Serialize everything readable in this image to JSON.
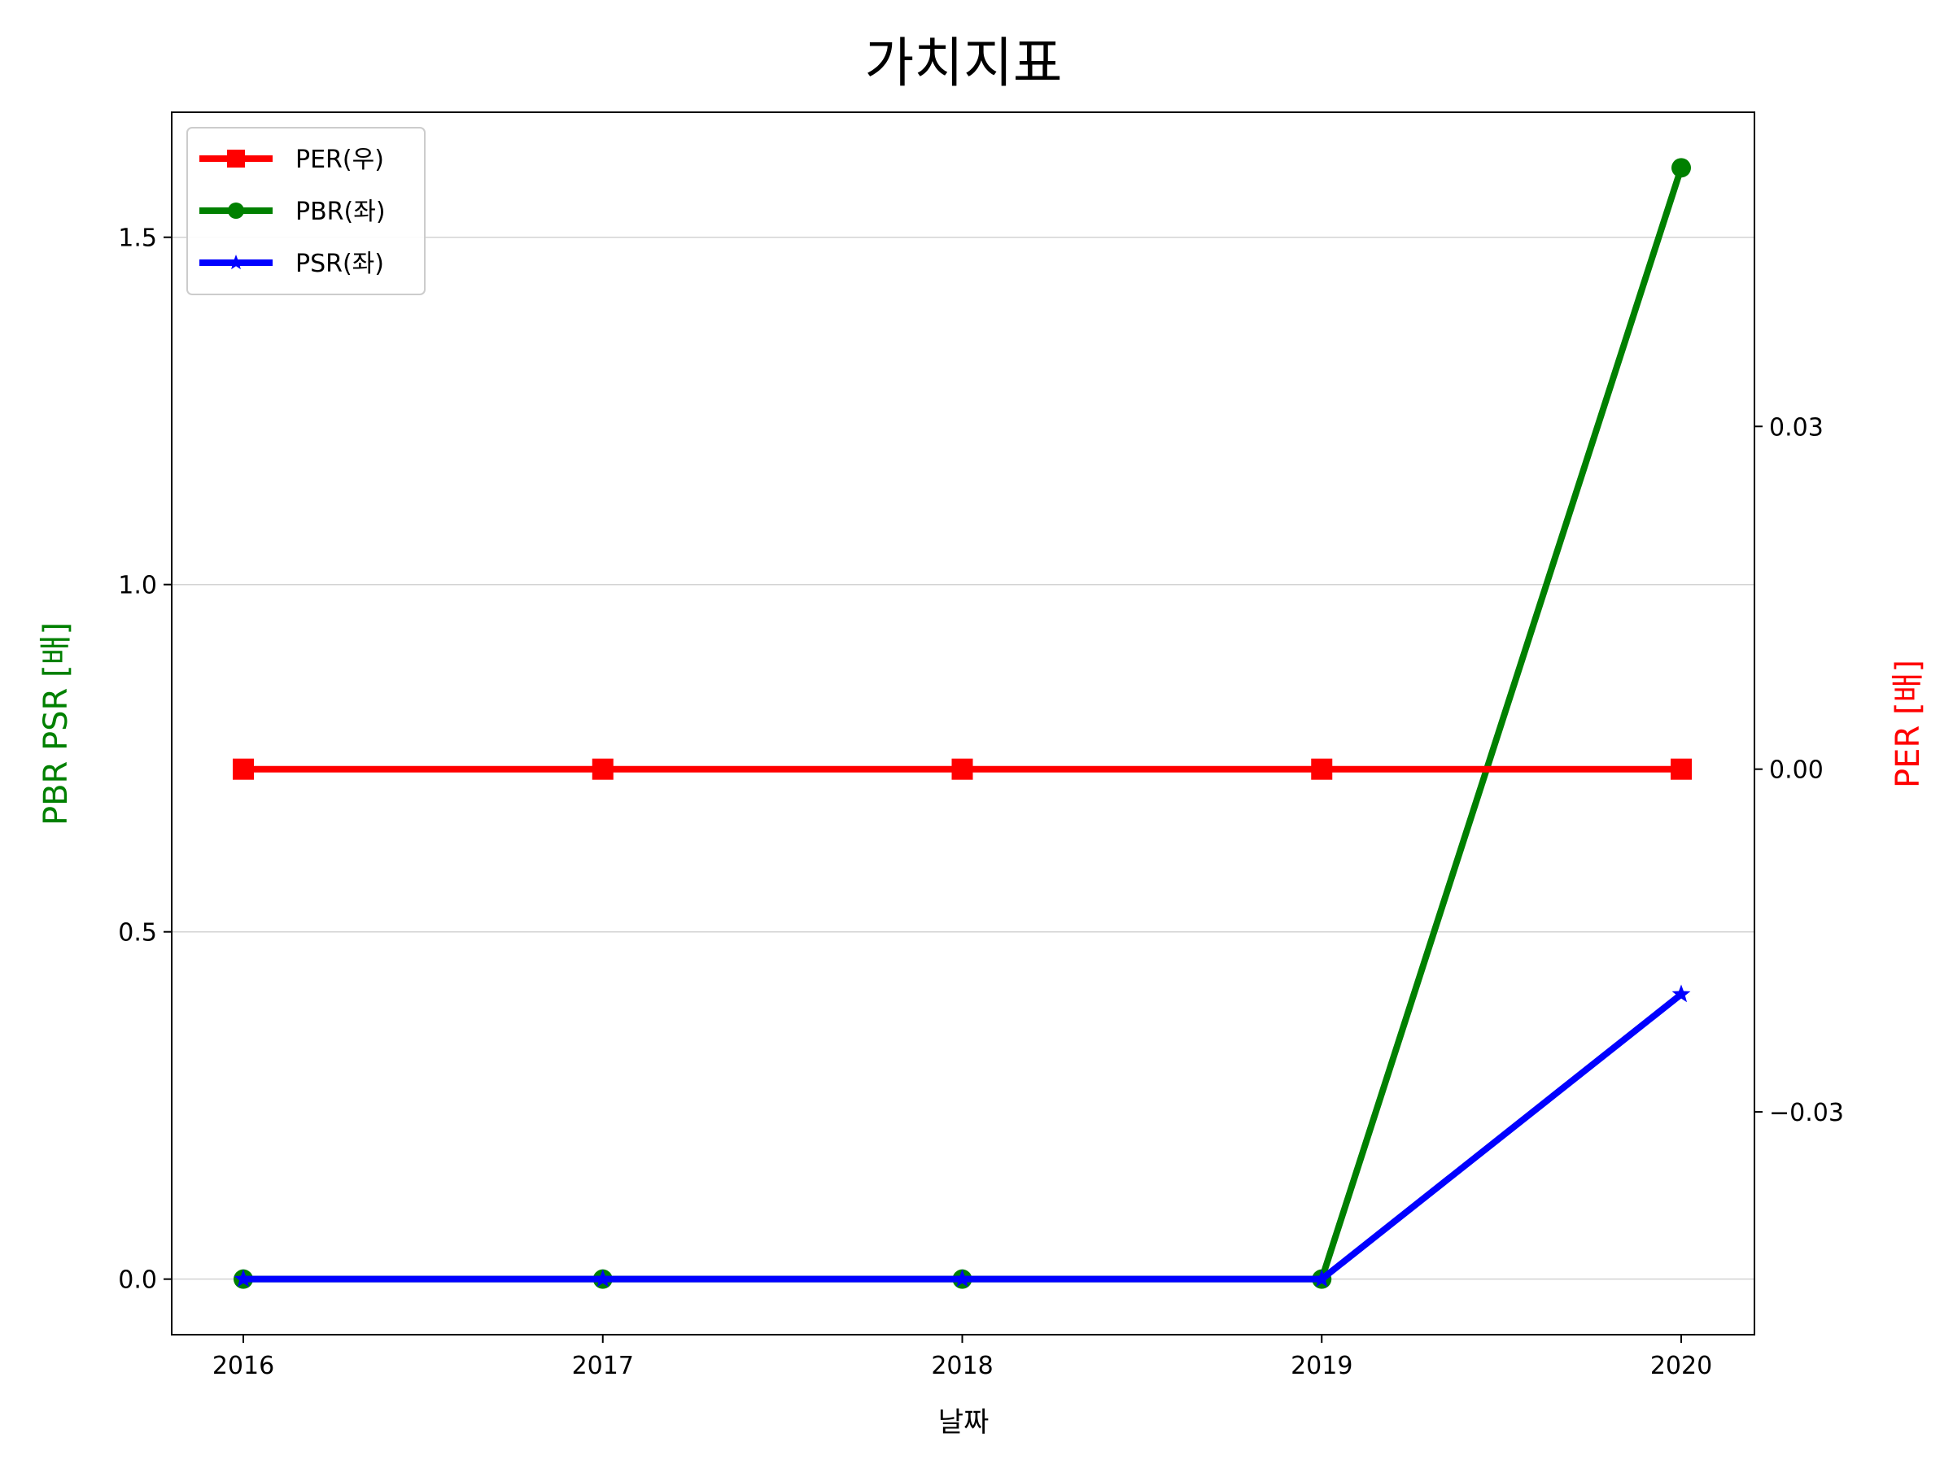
{
  "chart_data": {
    "type": "line",
    "title": "가치지표",
    "xlabel": "날짜",
    "ylabel_left": "PBR PSR [배]",
    "ylabel_right": "PER [배]",
    "categories": [
      "2016",
      "2017",
      "2018",
      "2019",
      "2020"
    ],
    "ylim_left": [
      -0.08,
      1.68
    ],
    "yticks_left": [
      "0.0",
      "0.5",
      "1.0",
      "1.5"
    ],
    "ylim_right": [
      -0.0495,
      0.0575
    ],
    "yticks_right": [
      {
        "value": -0.03,
        "label": "−0.03"
      },
      {
        "value": 0.0,
        "label": "0.00"
      },
      {
        "value": 0.03,
        "label": "0.03"
      }
    ],
    "grid": "horizontal (left axis)",
    "legend_position": "top-left",
    "series": [
      {
        "name": "PER(우)",
        "axis": "right",
        "color": "#ff0000",
        "marker": "square",
        "values": [
          0,
          0,
          0,
          0,
          0
        ]
      },
      {
        "name": "PBR(좌)",
        "axis": "left",
        "color": "#008000",
        "marker": "circle",
        "values": [
          0,
          0,
          0,
          0,
          1.6
        ]
      },
      {
        "name": "PSR(좌)",
        "axis": "left",
        "color": "#0000ff",
        "marker": "star",
        "values": [
          0,
          0,
          0,
          0,
          0.41
        ]
      }
    ]
  }
}
